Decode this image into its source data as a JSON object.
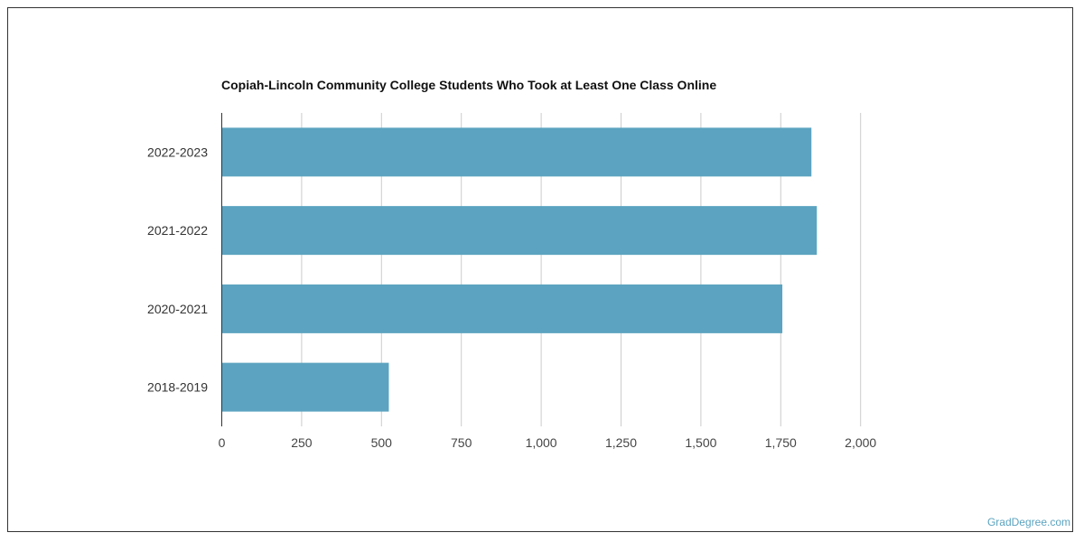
{
  "chart_data": {
    "type": "bar",
    "orientation": "horizontal",
    "title": "Copiah-Lincoln Community College Students Who Took at Least One Class Online",
    "categories": [
      "2022-2023",
      "2021-2022",
      "2020-2021",
      "2018-2019"
    ],
    "values": [
      1846,
      1863,
      1755,
      523
    ],
    "xlim": [
      0,
      2000
    ],
    "xticks": [
      0,
      250,
      500,
      750,
      1000,
      1250,
      1500,
      1750,
      2000
    ],
    "xtick_labels": [
      "0",
      "250",
      "500",
      "750",
      "1,000",
      "1,250",
      "1,500",
      "1,750",
      "2,000"
    ],
    "xlabel": "",
    "ylabel": "",
    "grid": true,
    "bar_color": "#5ba3c0"
  },
  "credit": "GradDegree.com"
}
